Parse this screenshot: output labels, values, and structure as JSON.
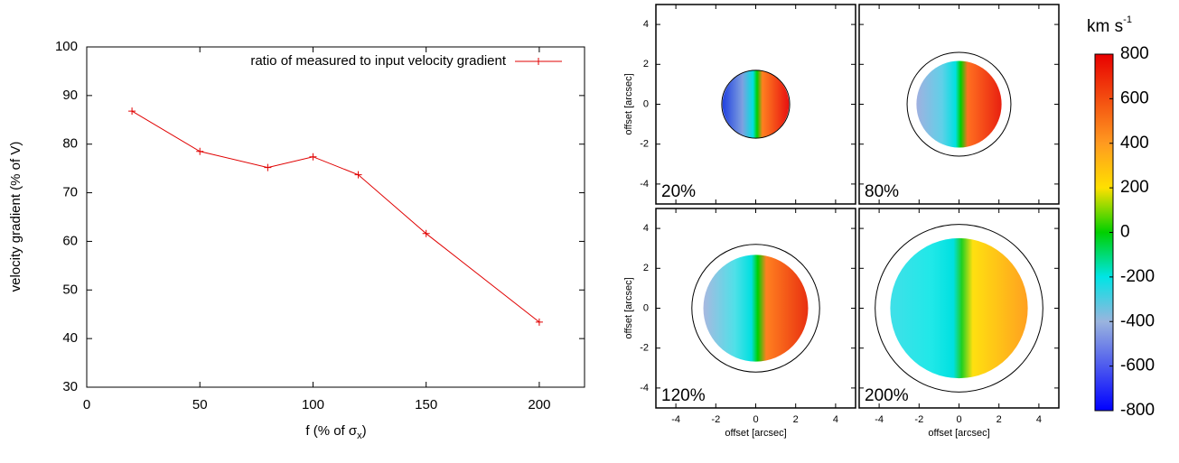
{
  "chart_data": [
    {
      "type": "line",
      "x_label": [
        "f (% of σ",
        "x",
        ")"
      ],
      "y_label": "velocity gradient (% of V)",
      "x": [
        20,
        50,
        80,
        100,
        120,
        150,
        200
      ],
      "series": [
        {
          "name": "ratio of measured to input velocity gradient",
          "color": "#e00000",
          "values": [
            86.8,
            78.5,
            75.2,
            77.4,
            73.7,
            61.6,
            43.4
          ]
        }
      ],
      "xlim": [
        0,
        220
      ],
      "xticks": [
        0,
        50,
        100,
        150,
        200
      ],
      "ylim": [
        30,
        100
      ],
      "yticks": [
        30,
        40,
        50,
        60,
        70,
        80,
        90,
        100
      ],
      "legend": "upper right",
      "grid": false
    },
    {
      "type": "velocity-map",
      "x_label": "offset [arcsec]",
      "y_label": "offset [arcsec]",
      "xlim": [
        -5,
        5
      ],
      "ylim": [
        -5,
        5
      ],
      "xticks": [
        -4,
        -2,
        0,
        2,
        4
      ],
      "yticks": [
        -4,
        -2,
        0,
        2,
        4
      ],
      "panels": [
        {
          "label": "20%",
          "aperture_radius": 1.7
        },
        {
          "label": "80%",
          "aperture_radius": 2.6
        },
        {
          "label": "120%",
          "aperture_radius": 3.2
        },
        {
          "label": "200%",
          "aperture_radius": 4.2
        }
      ],
      "colorbar": {
        "label": "km s",
        "label_sup": "-1",
        "clim": [
          -800,
          800
        ],
        "ticks": [
          -800,
          -600,
          -400,
          -200,
          0,
          200,
          400,
          600,
          800
        ]
      }
    }
  ]
}
